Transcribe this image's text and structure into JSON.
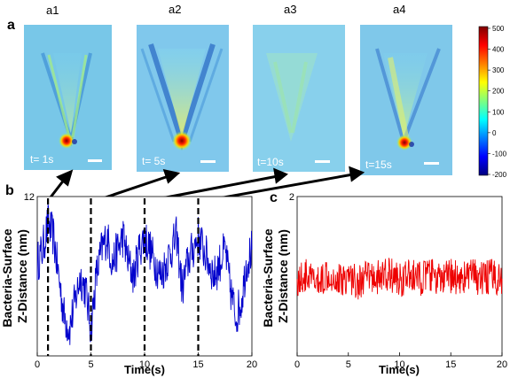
{
  "figure": {
    "panel_a": {
      "letter": "a",
      "images": [
        {
          "label": "a1",
          "time": "t= 1s"
        },
        {
          "label": "a2",
          "time": "t= 5s"
        },
        {
          "label": "a3",
          "time": "t=10s"
        },
        {
          "label": "a4",
          "time": "t=15s"
        }
      ],
      "colorbar": {
        "ticks": [
          "500",
          "400",
          "300",
          "200",
          "100",
          "0",
          "-100",
          "-200"
        ],
        "colors": [
          "#7f0000",
          "#ff0000",
          "#ff7f00",
          "#ffff00",
          "#7fff7f",
          "#00ffff",
          "#007fff",
          "#0000ff",
          "#00007f"
        ]
      }
    },
    "panel_b": {
      "letter": "b"
    },
    "panel_c": {
      "letter": "c"
    }
  },
  "chart_data": [
    {
      "type": "line",
      "panel": "b",
      "xlabel": "Time(s)",
      "ylabel": "Bacteria-Surface Z-Distance (nm)",
      "xlim": [
        0,
        20
      ],
      "ylim": [
        0,
        12
      ],
      "x_ticks": [
        "0",
        "5",
        "10",
        "15",
        "20"
      ],
      "y_ticks": [
        "12"
      ],
      "color": "#0000cc",
      "markers_at_time": [
        1,
        5,
        10,
        15
      ],
      "x": [
        0,
        0.5,
        1,
        1.5,
        2,
        2.5,
        3,
        3.5,
        4,
        4.5,
        5,
        5.5,
        6,
        6.5,
        7,
        7.5,
        8,
        8.5,
        9,
        9.5,
        10,
        10.5,
        11,
        11.5,
        12,
        12.5,
        13,
        13.5,
        14,
        14.5,
        15,
        15.5,
        16,
        16.5,
        17,
        17.5,
        18,
        18.5,
        19,
        19.5,
        20
      ],
      "y": [
        7,
        8,
        10,
        9,
        6,
        3,
        2,
        4,
        6,
        5,
        2,
        6,
        8,
        9,
        7,
        8,
        9,
        7,
        6,
        8,
        9,
        8,
        7,
        6,
        7,
        8,
        9,
        5,
        7,
        8,
        9,
        8,
        7,
        6,
        7,
        8,
        5,
        3,
        4,
        7,
        8
      ]
    },
    {
      "type": "line",
      "panel": "c",
      "xlabel": "Time(s)",
      "ylabel": "Bacteria-Surface Z-Distance (nm)",
      "xlim": [
        0,
        20
      ],
      "ylim": [
        0,
        2
      ],
      "x_ticks": [
        "0",
        "5",
        "10",
        "15",
        "20"
      ],
      "y_ticks": [
        "2"
      ],
      "color": "#ee0000",
      "x": [
        0,
        1,
        2,
        3,
        4,
        5,
        6,
        7,
        8,
        9,
        10,
        11,
        12,
        13,
        14,
        15,
        16,
        17,
        18,
        19,
        20
      ],
      "y": [
        0.95,
        1.0,
        0.9,
        1.05,
        0.95,
        1.0,
        0.92,
        1.0,
        0.98,
        1.03,
        0.95,
        1.0,
        0.97,
        1.02,
        0.94,
        1.0,
        0.98,
        1.01,
        0.96,
        1.0,
        0.97
      ]
    }
  ]
}
